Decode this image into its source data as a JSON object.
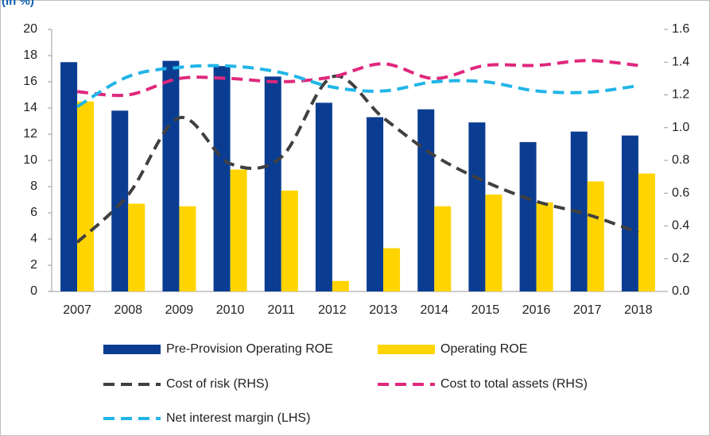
{
  "chart_data": {
    "type": "bar",
    "title": "(in %)",
    "categories": [
      "2007",
      "2008",
      "2009",
      "2010",
      "2011",
      "2012",
      "2013",
      "2014",
      "2015",
      "2016",
      "2017",
      "2018"
    ],
    "ylim": [
      0,
      20
    ],
    "yticks": [
      0,
      2,
      4,
      6,
      8,
      10,
      12,
      14,
      16,
      18,
      20
    ],
    "y2lim": [
      0,
      1.6
    ],
    "y2ticks": [
      {
        "value": 0,
        "label": "0.0"
      },
      0.2,
      0.4,
      0.6,
      0.8,
      {
        "value": 1,
        "label": "1.0"
      },
      1.2,
      1.4,
      1.6
    ],
    "series": [
      {
        "name": "Pre-Provision Operating ROE",
        "type": "bar",
        "color": "#0a3d91",
        "values": [
          17.5,
          13.8,
          17.6,
          17.2,
          16.4,
          14.4,
          13.3,
          13.9,
          12.9,
          11.4,
          12.2,
          11.9
        ]
      },
      {
        "name": "Operating ROE",
        "type": "bar",
        "color": "#ffd400",
        "values": [
          14.5,
          6.7,
          6.5,
          9.3,
          7.7,
          0.8,
          3.3,
          6.5,
          7.4,
          6.8,
          8.4,
          9.0
        ]
      },
      {
        "name": "Cost of risk (RHS)",
        "type": "line",
        "axis": "y2",
        "color": "#404040",
        "values": [
          0.3,
          0.59,
          1.06,
          0.78,
          0.82,
          1.31,
          1.06,
          0.83,
          0.67,
          0.55,
          0.47,
          0.36
        ]
      },
      {
        "name": "Cost to total assets (RHS)",
        "type": "line",
        "axis": "y2",
        "color": "#e0287d",
        "values": [
          1.22,
          1.2,
          1.3,
          1.3,
          1.28,
          1.31,
          1.39,
          1.3,
          1.38,
          1.38,
          1.41,
          1.38
        ]
      },
      {
        "name": "Net interest margin (LHS)",
        "type": "line",
        "color": "#21b5e8",
        "values": [
          14.1,
          16.4,
          17.1,
          17.2,
          16.7,
          15.6,
          15.3,
          16.0,
          16.0,
          15.3,
          15.2,
          15.7
        ]
      }
    ]
  }
}
